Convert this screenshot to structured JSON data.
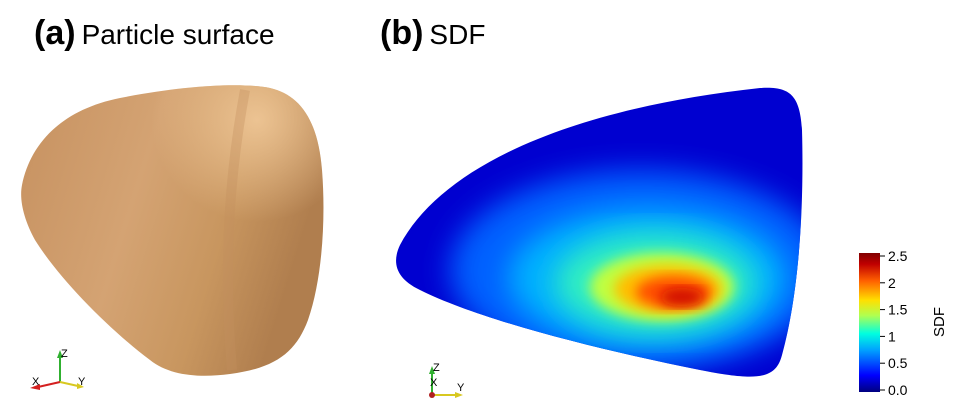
{
  "panels": [
    {
      "letter": "(a)",
      "title": "Particle surface"
    },
    {
      "letter": "(b)",
      "title": "SDF"
    }
  ],
  "axes_triad": {
    "x": "X",
    "y": "Y",
    "z": "Z"
  },
  "colorbar": {
    "label": "SDF",
    "ticks": [
      "2.5",
      "2",
      "1.5",
      "1",
      "0.5",
      "0.0"
    ],
    "colormap": [
      "#00007f",
      "#0000ff",
      "#00a0ff",
      "#00ffe0",
      "#b0ff50",
      "#ffe000",
      "#ff6000",
      "#c00000",
      "#800000"
    ]
  },
  "colors": {
    "particle": "#d4a373",
    "particle_shade": "#b3814f",
    "axis_x": "#d42020",
    "axis_y": "#d8c820",
    "axis_z": "#30b030"
  }
}
